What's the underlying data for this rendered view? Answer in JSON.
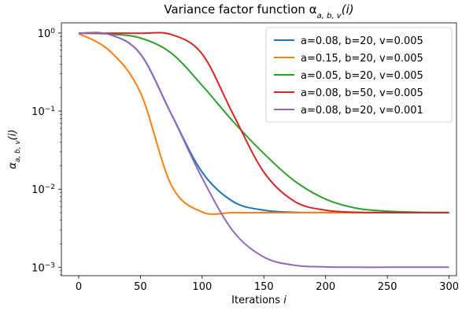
{
  "chart_data": {
    "type": "line",
    "title": "Variance factor function α",
    "title_sub": "a, b, v",
    "title_tail": "(i)",
    "xlabel": "Iterations",
    "xlabel_var": "i",
    "ylabel_main": "α",
    "ylabel_sub": "a, b, v",
    "ylabel_tail": "(i)",
    "xlim": [
      -14,
      306
    ],
    "ylim": [
      0.00078,
      1.35
    ],
    "yscale": "log",
    "grid": false,
    "legend_position": "top-right",
    "xticks": [
      0,
      50,
      100,
      150,
      200,
      250,
      300
    ],
    "xtick_labels": [
      "0",
      "50",
      "100",
      "150",
      "200",
      "250",
      "300"
    ],
    "yticks": [
      0.001,
      0.01,
      0.1,
      1
    ],
    "ytick_labels": [
      {
        "base": "10",
        "exp": "−3"
      },
      {
        "base": "10",
        "exp": "−2"
      },
      {
        "base": "10",
        "exp": "−1"
      },
      {
        "base": "10",
        "exp": "0"
      }
    ],
    "x": [
      0,
      25,
      50,
      75,
      100,
      125,
      150,
      175,
      200,
      225,
      250,
      275,
      300
    ],
    "series": [
      {
        "name": "a=0.08, b=20, v=0.005",
        "color": "#1f77b4",
        "values": [
          0.995,
          0.958,
          0.539,
          0.0918,
          0.0165,
          0.00695,
          0.00538,
          0.00506,
          0.00501,
          0.005,
          0.005,
          0.005,
          0.005
        ]
      },
      {
        "name": "a=0.15, b=20, v=0.005",
        "color": "#ff7f0e",
        "values": [
          0.985,
          0.592,
          0.173,
          0.0113,
          0.0051,
          0.005,
          0.005,
          0.005,
          0.005,
          0.005,
          0.005,
          0.005,
          0.005
        ]
      },
      {
        "name": "a=0.05, b=20, v=0.005",
        "color": "#2ca02c",
        "values": [
          0.993,
          0.97,
          0.863,
          0.553,
          0.213,
          0.0738,
          0.0286,
          0.0127,
          0.00746,
          0.0057,
          0.00522,
          0.00506,
          0.00502
        ]
      },
      {
        "name": "a=0.08, b=50, v=0.005",
        "color": "#d62728",
        "values": [
          0.995,
          0.995,
          0.992,
          0.957,
          0.539,
          0.0918,
          0.0165,
          0.00695,
          0.00538,
          0.00506,
          0.00501,
          0.005,
          0.005
        ]
      },
      {
        "name": "a=0.08, b=20, v=0.001",
        "color": "#9467bd",
        "values": [
          0.995,
          0.958,
          0.539,
          0.0918,
          0.0139,
          0.00291,
          0.00135,
          0.00106,
          0.00101,
          0.001,
          0.001,
          0.001,
          0.001
        ]
      }
    ]
  }
}
